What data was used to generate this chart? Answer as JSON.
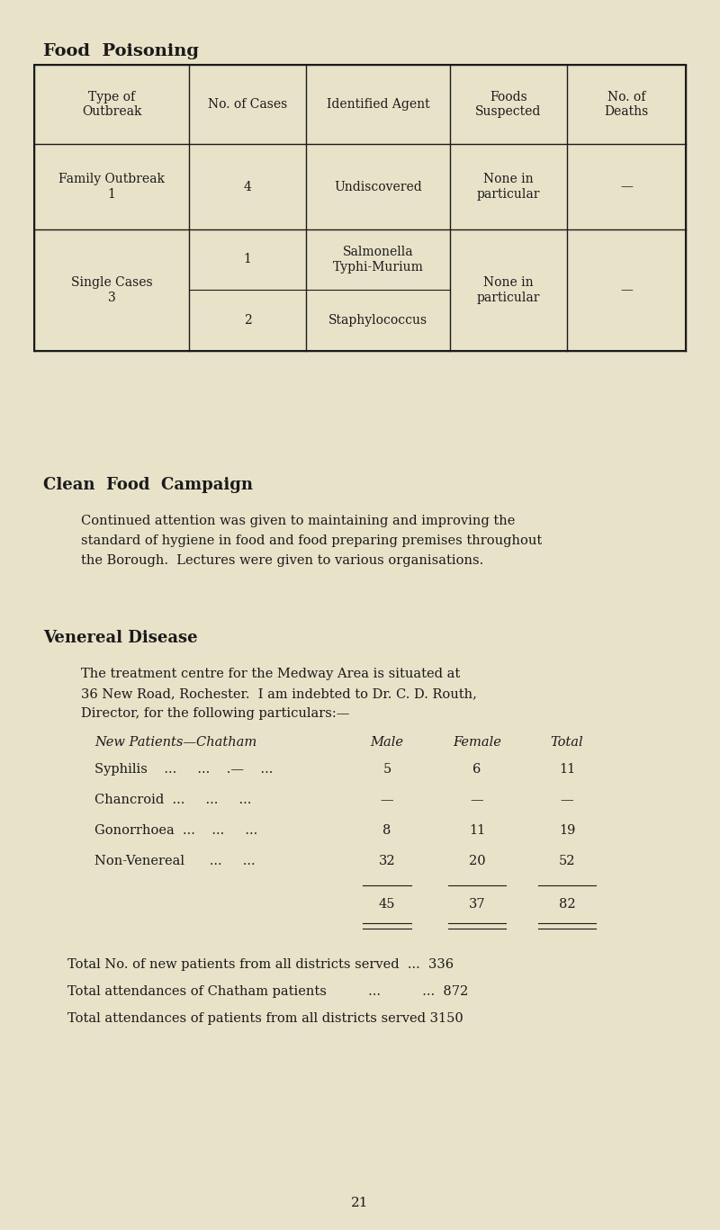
{
  "bg_color": "#e8e2c8",
  "text_color": "#1a1a1a",
  "food_poisoning_title": "Food  Poisoning",
  "table_headers": [
    "Type of\nOutbreak",
    "No. of Cases",
    "Identified Agent",
    "Foods\nSuspected",
    "No. of\nDeaths"
  ],
  "clean_food_title": "Clean  Food  Campaign",
  "clean_food_para1": "Continued attention was given to maintaining and improving the",
  "clean_food_para2": "standard of hygiene in food and food preparing premises throughout",
  "clean_food_para3": "the Borough.  Lectures were given to various organisations.",
  "vd_title": "Venereal Disease",
  "vd_para1": "The treatment centre for the Medway Area is situated at",
  "vd_para2": "36 New Road, Rochester.  I am indebted to Dr. C. D. Routh,",
  "vd_para3": "Director, for the following particulars:—",
  "page_number": "21"
}
